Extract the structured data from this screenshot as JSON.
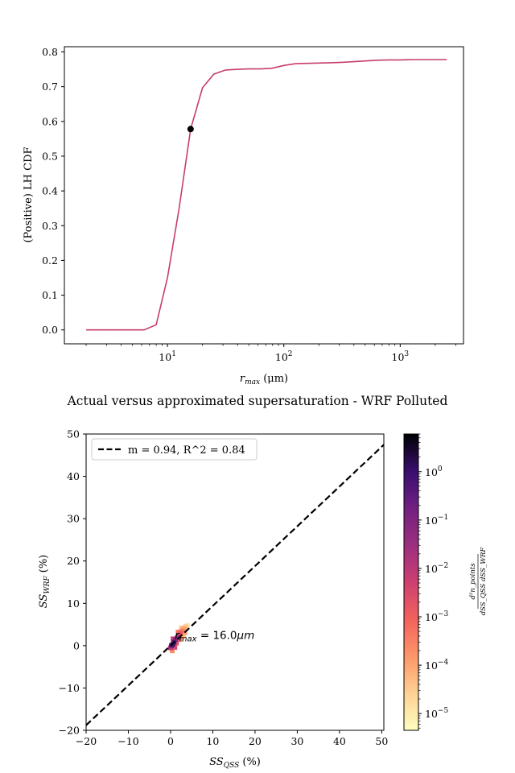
{
  "chart_data": [
    {
      "type": "line",
      "title": "",
      "xlabel": "r_max (μm)",
      "xlabel_main": "r",
      "xlabel_sub": "max",
      "xlabel_unit": " (μm)",
      "ylabel": "(Positive) LH CDF",
      "xscale": "log",
      "xlim": [
        1.3,
        3500
      ],
      "ylim": [
        -0.04,
        0.815
      ],
      "xticks": [
        {
          "value": 10,
          "base": "10",
          "exp": "1"
        },
        {
          "value": 100,
          "base": "10",
          "exp": "2"
        },
        {
          "value": 1000,
          "base": "10",
          "exp": "3"
        }
      ],
      "yticks": [
        "0.0",
        "0.1",
        "0.2",
        "0.3",
        "0.4",
        "0.5",
        "0.6",
        "0.7",
        "0.8"
      ],
      "series": [
        {
          "color": "#c63d6d",
          "x": [
            2,
            2.5,
            3.2,
            4,
            5,
            6.3,
            8,
            10,
            12.6,
            15.8,
            20,
            25,
            31.6,
            40,
            50,
            63,
            79,
            100,
            126,
            158,
            200,
            251,
            316,
            398,
            501,
            631,
            794,
            1000,
            1259,
            1585,
            1995,
            2512
          ],
          "y": [
            0,
            0,
            0,
            0,
            0,
            0,
            0.015,
            0.15,
            0.35,
            0.578,
            0.697,
            0.736,
            0.748,
            0.75,
            0.751,
            0.751,
            0.753,
            0.761,
            0.766,
            0.767,
            0.768,
            0.769,
            0.77,
            0.772,
            0.774,
            0.776,
            0.777,
            0.777,
            0.778,
            0.778,
            0.778,
            0.778
          ]
        }
      ],
      "marker": {
        "x": 15.8,
        "y": 0.578,
        "color": "#000000"
      }
    },
    {
      "type": "heatmap",
      "title": "Actual versus approximated supersaturation - WRF Polluted",
      "xlabel": "SS_QSS (%)",
      "xlabel_main": "SS",
      "xlabel_sub": "QSS",
      "xlabel_unit": " (%)",
      "ylabel": "SS_WRF (%)",
      "ylabel_main": "SS",
      "ylabel_sub": "WRF",
      "ylabel_unit": " (%)",
      "xlim": [
        -20,
        50.5
      ],
      "ylim": [
        -20,
        50
      ],
      "xticks": [
        "−20",
        "−10",
        "0",
        "10",
        "20",
        "30",
        "40",
        "50"
      ],
      "xtick_values": [
        -20,
        -10,
        0,
        10,
        20,
        30,
        40,
        50
      ],
      "yticks": [
        "−20",
        "−10",
        "0",
        "10",
        "20",
        "30",
        "40",
        "50"
      ],
      "ytick_values": [
        -20,
        -10,
        0,
        10,
        20,
        30,
        40,
        50
      ],
      "fit_line": {
        "slope": 0.94,
        "intercept": 0.0,
        "color": "#000000",
        "style": "dashed"
      },
      "legend": {
        "label": "m = 0.94, R^2 = 0.84",
        "placement": "top-left"
      },
      "annotation": {
        "text_main": "r",
        "text_sub": "max",
        "text_rest": " = 16.0",
        "text_unit": "μm",
        "x": 1.0,
        "y": 1.0
      },
      "density_points": [
        {
          "x": 0.5,
          "y": 0.3,
          "d": 1.0
        },
        {
          "x": 0.8,
          "y": 0.8,
          "d": 0.5
        },
        {
          "x": 0.2,
          "y": 0.0,
          "d": 0.2
        },
        {
          "x": 1.2,
          "y": 1.4,
          "d": 0.08
        },
        {
          "x": 1.6,
          "y": 1.9,
          "d": 0.02
        },
        {
          "x": 0.0,
          "y": -0.5,
          "d": 0.01
        },
        {
          "x": 2.0,
          "y": 2.5,
          "d": 0.004
        },
        {
          "x": 2.4,
          "y": 3.0,
          "d": 0.001
        },
        {
          "x": 2.8,
          "y": 3.5,
          "d": 0.0003
        },
        {
          "x": 3.2,
          "y": 4.0,
          "d": 0.0001
        },
        {
          "x": 3.6,
          "y": 4.5,
          "d": 3e-05
        },
        {
          "x": 0.4,
          "y": -1.2,
          "d": 0.0002
        },
        {
          "x": 1.0,
          "y": -0.4,
          "d": 0.003
        },
        {
          "x": 2.2,
          "y": 1.5,
          "d": 0.0005
        },
        {
          "x": 3.0,
          "y": 2.2,
          "d": 5e-05
        },
        {
          "x": 1.4,
          "y": 0.6,
          "d": 0.002
        },
        {
          "x": 0.6,
          "y": 1.6,
          "d": 0.006
        },
        {
          "x": 1.8,
          "y": 3.2,
          "d": 0.0004
        },
        {
          "x": 2.6,
          "y": 4.2,
          "d": 4e-05
        },
        {
          "x": 4.0,
          "y": 4.8,
          "d": 1e-05
        },
        {
          "x": 3.4,
          "y": 3.0,
          "d": 8e-05
        }
      ],
      "colorbar": {
        "scale": "log",
        "range": [
          4.5e-06,
          6
        ],
        "ticks": [
          {
            "value": 1,
            "base": "10",
            "exp": "0"
          },
          {
            "value": 0.1,
            "base": "10",
            "exp": "−1"
          },
          {
            "value": 0.01,
            "base": "10",
            "exp": "−2"
          },
          {
            "value": 0.001,
            "base": "10",
            "exp": "−3"
          },
          {
            "value": 0.0001,
            "base": "10",
            "exp": "−4"
          },
          {
            "value": 1e-05,
            "base": "10",
            "exp": "−5"
          }
        ],
        "label_numerator": "d²n_points",
        "label_denominator": "dSS_QSS dSS_WRF",
        "colormap": "magma_r"
      }
    }
  ]
}
